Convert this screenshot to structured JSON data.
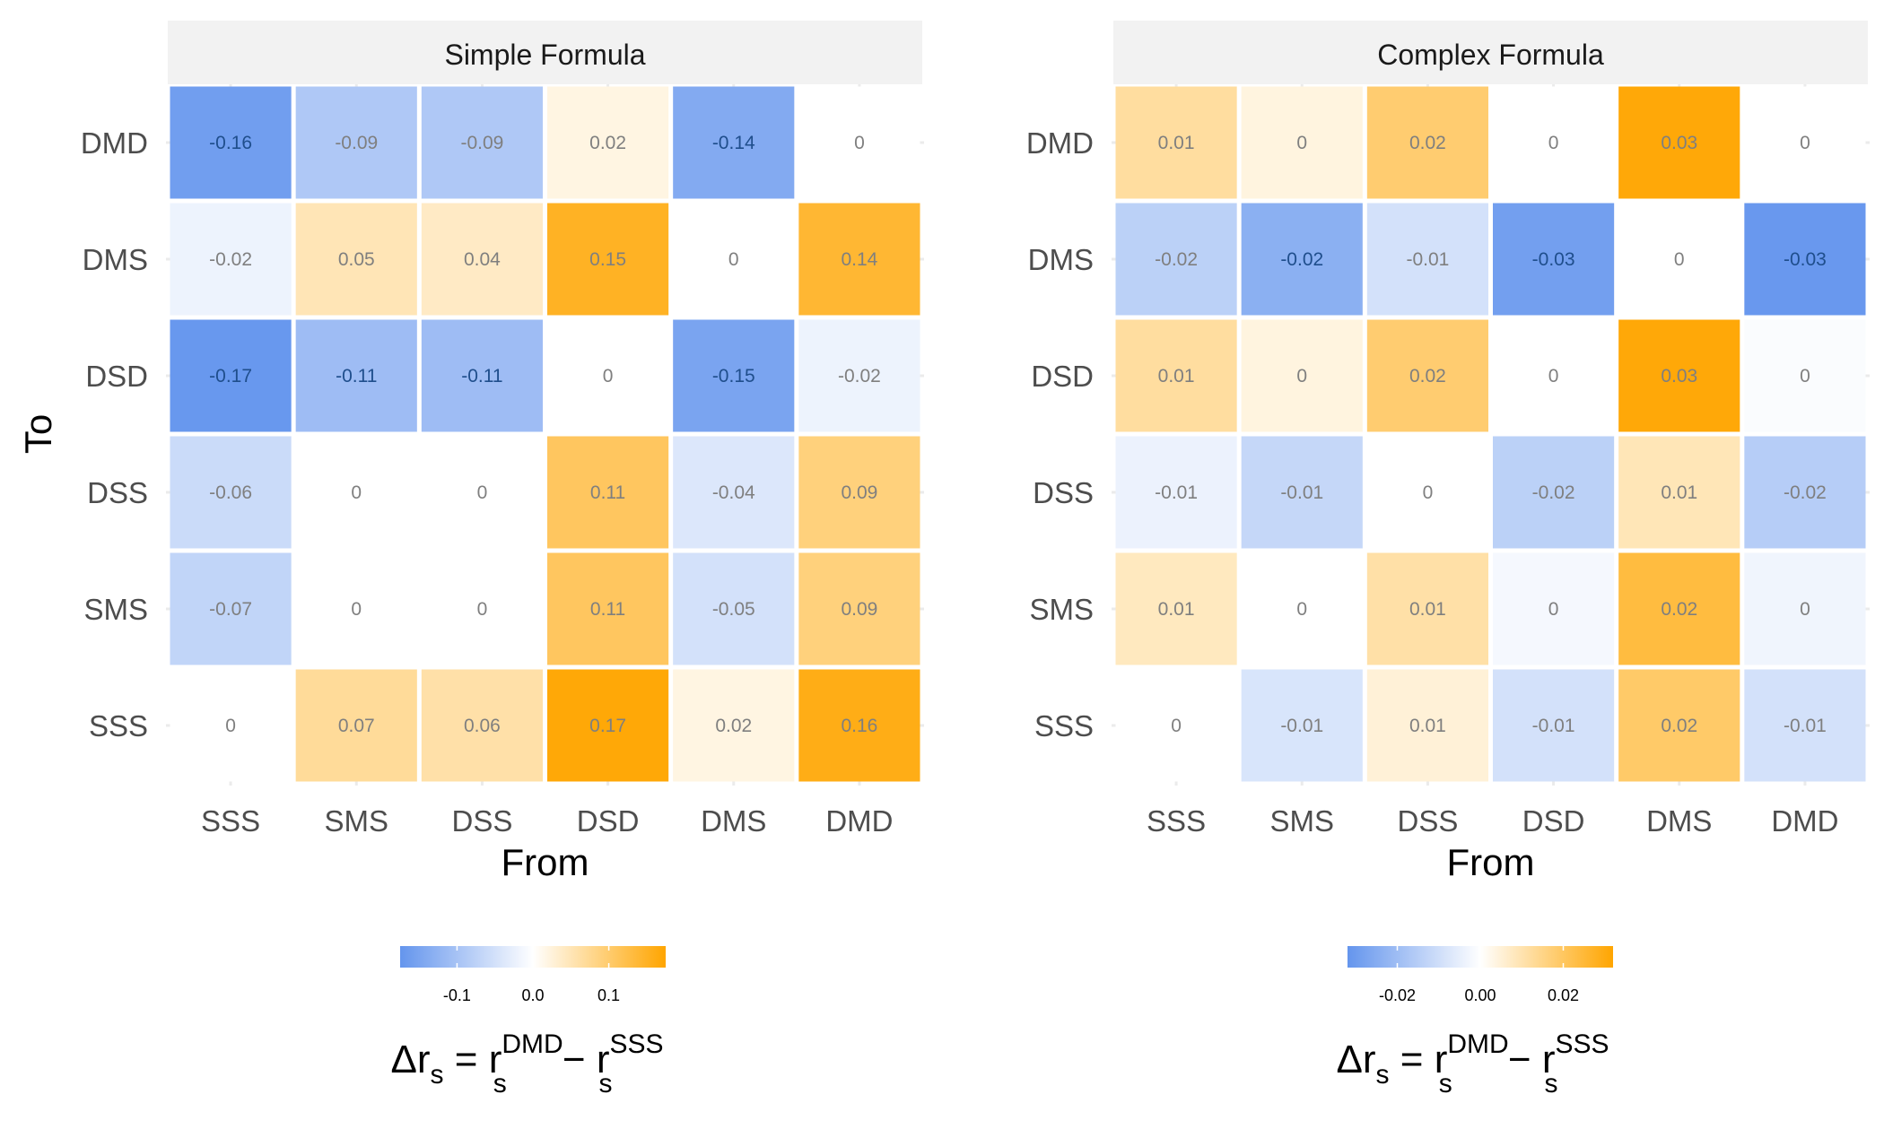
{
  "chart_data": [
    {
      "type": "heatmap",
      "title": "Simple Formula",
      "xlabel": "From",
      "ylabel": "To",
      "x_categories": [
        "SSS",
        "SMS",
        "DSS",
        "DSD",
        "DMS",
        "DMD"
      ],
      "y_categories": [
        "SSS",
        "SMS",
        "DSS",
        "DSD",
        "DMS",
        "DMD"
      ],
      "values": [
        [
          0,
          0.07,
          0.06,
          0.17,
          0.02,
          0.16
        ],
        [
          -0.07,
          0,
          0,
          0.11,
          -0.05,
          0.09
        ],
        [
          -0.06,
          0,
          0,
          0.11,
          -0.04,
          0.09
        ],
        [
          -0.17,
          -0.11,
          -0.11,
          0,
          -0.15,
          -0.02
        ],
        [
          -0.02,
          0.05,
          0.04,
          0.15,
          0,
          0.14
        ],
        [
          -0.16,
          -0.09,
          -0.09,
          0.02,
          -0.14,
          0
        ]
      ],
      "labels": [
        [
          "0",
          "0.07",
          "0.06",
          "0.17",
          "0.02",
          "0.16"
        ],
        [
          "-0.07",
          "0",
          "0",
          "0.11",
          "-0.05",
          "0.09"
        ],
        [
          "-0.06",
          "0",
          "0",
          "0.11",
          "-0.04",
          "0.09"
        ],
        [
          "-0.17",
          "-0.11",
          "-0.11",
          "0",
          "-0.15",
          "-0.02"
        ],
        [
          "-0.02",
          "0.05",
          "0.04",
          "0.15",
          "0",
          "0.14"
        ],
        [
          "-0.16",
          "-0.09",
          "-0.09",
          "0.02",
          "-0.14",
          "0"
        ]
      ],
      "color_limit": 0.175,
      "legend": {
        "ticks": [
          -0.1,
          0.0,
          0.1
        ],
        "tick_labels": [
          "-0.1",
          "0.0",
          "0.1"
        ],
        "position": "bottom"
      }
    },
    {
      "type": "heatmap",
      "title": "Complex Formula",
      "xlabel": "From",
      "ylabel": "",
      "x_categories": [
        "SSS",
        "SMS",
        "DSS",
        "DSD",
        "DMS",
        "DMD"
      ],
      "y_categories": [
        "SSS",
        "SMS",
        "DSS",
        "DSD",
        "DMS",
        "DMD"
      ],
      "values": [
        [
          0,
          -0.01,
          0.01,
          -0.01,
          0.02,
          -0.01
        ],
        [
          0.01,
          0,
          0.01,
          0,
          0.02,
          0
        ],
        [
          -0.01,
          -0.01,
          0,
          -0.02,
          0.01,
          -0.02
        ],
        [
          0.01,
          0,
          0.02,
          0,
          0.03,
          0
        ],
        [
          -0.02,
          -0.02,
          -0.01,
          -0.03,
          0,
          -0.03
        ],
        [
          0.01,
          0,
          0.02,
          0,
          0.03,
          0
        ]
      ],
      "values_shading": [
        [
          0,
          -0.008,
          0.005,
          -0.009,
          0.019,
          -0.009
        ],
        [
          0.008,
          0,
          0.011,
          -0.002,
          0.024,
          -0.003
        ],
        [
          -0.004,
          -0.012,
          0,
          -0.014,
          0.009,
          -0.015
        ],
        [
          0.012,
          0.004,
          0.018,
          0,
          0.031,
          -0.001
        ],
        [
          -0.014,
          -0.024,
          -0.009,
          -0.029,
          0,
          -0.031
        ],
        [
          0.012,
          0.004,
          0.018,
          0,
          0.031,
          0
        ]
      ],
      "labels": [
        [
          "0",
          "-0.01",
          "0.01",
          "-0.01",
          "0.02",
          "-0.01"
        ],
        [
          "0.01",
          "0",
          "0.01",
          "0",
          "0.02",
          "0"
        ],
        [
          "-0.01",
          "-0.01",
          "0",
          "-0.02",
          "0.01",
          "-0.02"
        ],
        [
          "0.01",
          "0",
          "0.02",
          "0",
          "0.03",
          "0"
        ],
        [
          "-0.02",
          "-0.02",
          "-0.01",
          "-0.03",
          "0",
          "-0.03"
        ],
        [
          "0.01",
          "0",
          "0.02",
          "0",
          "0.03",
          "0"
        ]
      ],
      "color_limit": 0.032,
      "legend": {
        "ticks": [
          -0.02,
          0.0,
          0.02
        ],
        "tick_labels": [
          "-0.02",
          "0.00",
          "0.02"
        ],
        "position": "bottom"
      }
    }
  ],
  "legend_title": {
    "main": "Δr",
    "sub": "s",
    "equals": " = ",
    "r": "r",
    "sup1": "DMD",
    "minus": " − ",
    "sup2": "SSS"
  },
  "colors": {
    "low": "#6495ED",
    "mid": "#FFFFFF",
    "high": "#FFA500",
    "strip_background": "#F2F2F2",
    "gridline": "#EBEBEB",
    "tick_text": "#4D4D4D"
  }
}
